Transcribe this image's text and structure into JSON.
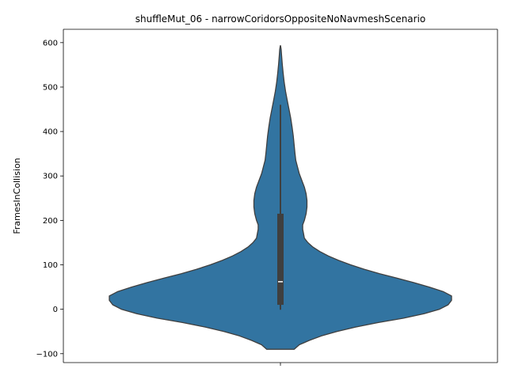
{
  "chart_data": {
    "type": "violin",
    "title": "shuffleMut_06 - narrowCoridorsOppositeNoNavmeshScenario",
    "xlabel": "",
    "ylabel": "FramesInCollision",
    "ylim": [
      -120,
      630
    ],
    "yticks": [
      -100,
      0,
      100,
      200,
      300,
      400,
      500,
      600
    ],
    "ytick_labels": [
      "−100",
      "0",
      "100",
      "200",
      "300",
      "400",
      "500",
      "600"
    ],
    "grid": false,
    "violin": {
      "color": "#3274a1",
      "edge_color": "#3f3f3f",
      "density_profile": [
        [
          -90,
          0.08
        ],
        [
          -80,
          0.11
        ],
        [
          -70,
          0.17
        ],
        [
          -60,
          0.24
        ],
        [
          -50,
          0.33
        ],
        [
          -40,
          0.44
        ],
        [
          -30,
          0.57
        ],
        [
          -20,
          0.72
        ],
        [
          -10,
          0.84
        ],
        [
          0,
          0.93
        ],
        [
          10,
          0.98
        ],
        [
          20,
          1.0
        ],
        [
          30,
          1.0
        ],
        [
          40,
          0.95
        ],
        [
          50,
          0.87
        ],
        [
          60,
          0.78
        ],
        [
          70,
          0.68
        ],
        [
          80,
          0.58
        ],
        [
          90,
          0.49
        ],
        [
          100,
          0.41
        ],
        [
          110,
          0.34
        ],
        [
          120,
          0.28
        ],
        [
          130,
          0.23
        ],
        [
          140,
          0.19
        ],
        [
          150,
          0.16
        ],
        [
          160,
          0.14
        ],
        [
          170,
          0.135
        ],
        [
          180,
          0.13
        ],
        [
          190,
          0.13
        ],
        [
          200,
          0.14
        ],
        [
          215,
          0.15
        ],
        [
          230,
          0.155
        ],
        [
          245,
          0.155
        ],
        [
          260,
          0.15
        ],
        [
          275,
          0.14
        ],
        [
          290,
          0.125
        ],
        [
          305,
          0.11
        ],
        [
          320,
          0.1
        ],
        [
          335,
          0.09
        ],
        [
          350,
          0.085
        ],
        [
          370,
          0.08
        ],
        [
          390,
          0.075
        ],
        [
          410,
          0.068
        ],
        [
          430,
          0.06
        ],
        [
          450,
          0.05
        ],
        [
          470,
          0.04
        ],
        [
          490,
          0.03
        ],
        [
          510,
          0.022
        ],
        [
          530,
          0.016
        ],
        [
          550,
          0.011
        ],
        [
          570,
          0.007
        ],
        [
          585,
          0.004
        ],
        [
          593,
          0.001
        ]
      ]
    },
    "box": {
      "q1": 10,
      "median": 62,
      "q3": 215,
      "whisker_low": -1,
      "whisker_high": 460
    }
  }
}
